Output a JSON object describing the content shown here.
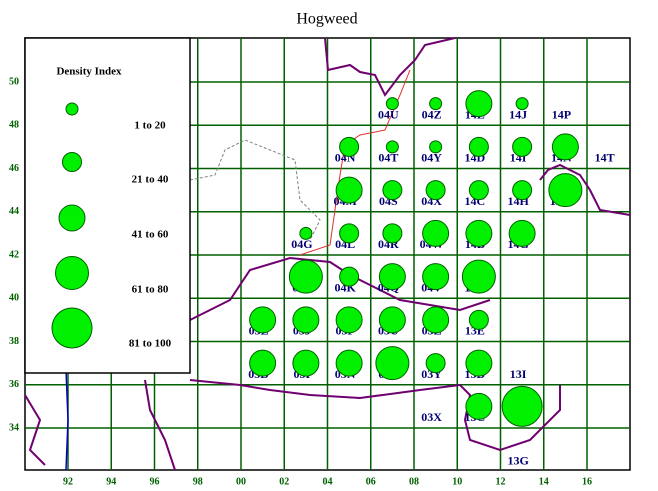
{
  "title": "Hogweed",
  "legend": {
    "title": "Density Index",
    "items": [
      {
        "label": "1 to 20",
        "class": 1
      },
      {
        "label": "21 to 40",
        "class": 2
      },
      {
        "label": "41 to 60",
        "class": 3
      },
      {
        "label": "61 to 80",
        "class": 4
      },
      {
        "label": "81 to 100",
        "class": 5
      }
    ]
  },
  "x_labels": [
    "92",
    "94",
    "96",
    "98",
    "00",
    "02",
    "04",
    "06",
    "08",
    "10",
    "12",
    "14",
    "16"
  ],
  "y_labels": [
    "50",
    "48",
    "46",
    "44",
    "42",
    "40",
    "38",
    "36",
    "34"
  ],
  "circles": [
    1,
    1,
    3,
    1,
    2,
    1,
    1,
    2,
    2,
    3,
    3,
    2,
    2,
    2,
    2,
    4,
    1,
    2,
    2,
    3,
    3,
    3,
    4,
    2,
    3,
    3,
    4,
    3,
    3,
    3,
    3,
    3,
    2,
    3,
    3,
    3,
    4,
    2,
    3,
    3,
    5
  ],
  "square_labels": [
    "04U",
    "04Z",
    "14E",
    "14J",
    "14P",
    "04N",
    "04T",
    "04Y",
    "14D",
    "14I",
    "14N",
    "14T",
    "04M",
    "04S",
    "04X",
    "14C",
    "14H",
    "14M",
    "04G",
    "04L",
    "04R",
    "04W",
    "14B",
    "14G",
    "04F",
    "04K",
    "04Q",
    "04V",
    "14A",
    "03E",
    "03J",
    "03P",
    "03U",
    "03Z",
    "13E",
    "03D",
    "03I",
    "03N",
    "03T",
    "03Y",
    "13D",
    "13I",
    "03X",
    "13C",
    "13G"
  ]
}
